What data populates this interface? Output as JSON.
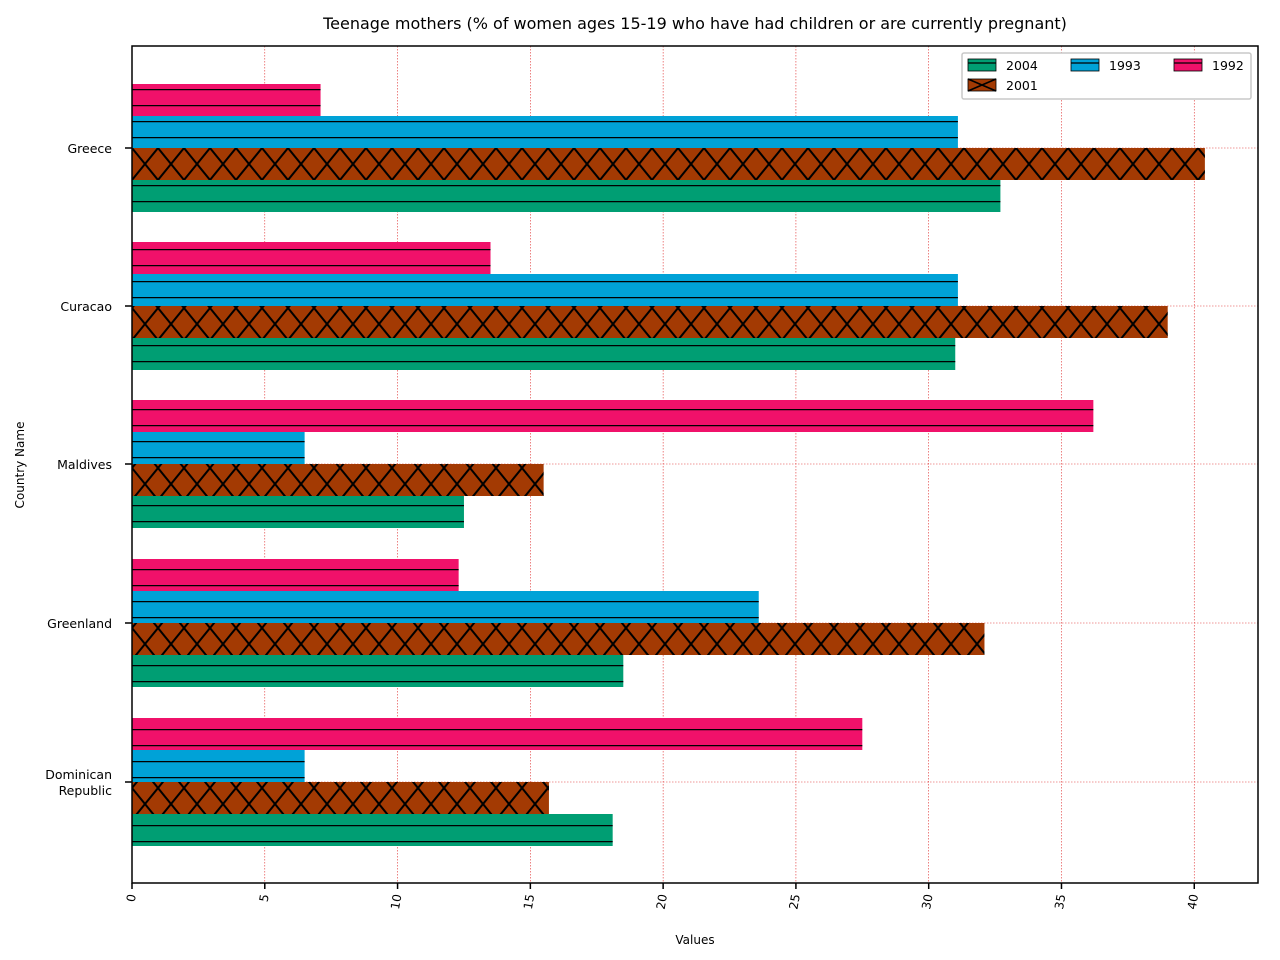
{
  "chart_data": {
    "type": "bar",
    "orientation": "horizontal",
    "title": "Teenage mothers (% of women ages 15-19 who have had children or are currently pregnant)",
    "xlabel": "Values",
    "ylabel": "Country Name",
    "xlim": [
      0,
      42.4
    ],
    "xticks": [
      0,
      5,
      10,
      15,
      20,
      25,
      30,
      35,
      40
    ],
    "grid": true,
    "legend_position": "top-right",
    "categories": [
      [
        "Greece"
      ],
      [
        "Curacao"
      ],
      [
        "Maldives"
      ],
      [
        "Greenland"
      ],
      [
        "Dominican",
        "Republic"
      ]
    ],
    "series": [
      {
        "name": "2004",
        "color": "#009e73",
        "hatch": "horizontal",
        "values": [
          32.7,
          31.0,
          12.5,
          18.5,
          18.1
        ]
      },
      {
        "name": "2001",
        "color": "#a33a03",
        "hatch": "cross",
        "values": [
          40.4,
          39.0,
          15.5,
          32.1,
          15.7
        ]
      },
      {
        "name": "1993",
        "color": "#00a2d7",
        "hatch": "horizontal",
        "values": [
          31.1,
          31.1,
          6.5,
          23.6,
          6.5
        ]
      },
      {
        "name": "1992",
        "color": "#f0116a",
        "hatch": "horizontal",
        "values": [
          7.1,
          13.5,
          36.2,
          12.3,
          27.5
        ]
      }
    ],
    "legend_order": [
      "2004",
      "1993",
      "1992",
      "2001"
    ]
  }
}
